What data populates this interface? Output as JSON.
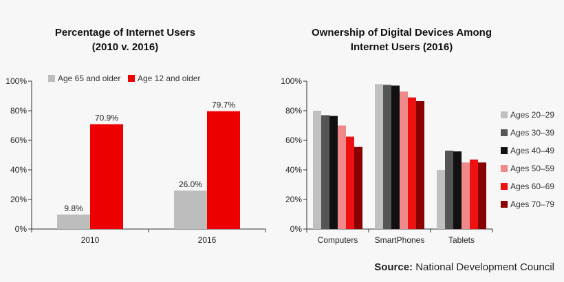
{
  "chart_data": [
    {
      "type": "bar",
      "title_lines": [
        "Percentage of Internet Users",
        "(2010 v. 2016)"
      ],
      "categories": [
        "2010",
        "2016"
      ],
      "series": [
        {
          "name": "Age 65 and older",
          "color": "#bdbdbd",
          "values": [
            9.8,
            26.0
          ],
          "labels": [
            "9.8%",
            "26.0%"
          ]
        },
        {
          "name": "Age 12 and older",
          "color": "#ee0000",
          "values": [
            70.9,
            79.7
          ],
          "labels": [
            "70.9%",
            "79.7%"
          ]
        }
      ],
      "yticks": [
        "0%",
        "20%",
        "40%",
        "60%",
        "80%",
        "100%"
      ],
      "ylim": [
        0,
        100
      ],
      "legend": "top"
    },
    {
      "type": "bar",
      "title_lines": [
        "Ownership of Digital Devices Among",
        "Internet Users (2016)"
      ],
      "categories": [
        "Computers",
        "SmartPhones",
        "Tablets"
      ],
      "series": [
        {
          "name": "Ages 20–29",
          "color": "#c0c0c0",
          "values": [
            80,
            98,
            40
          ]
        },
        {
          "name": "Ages 30–39",
          "color": "#555555",
          "values": [
            77,
            97.5,
            53
          ]
        },
        {
          "name": "Ages 40–49",
          "color": "#111111",
          "values": [
            76.5,
            97,
            52.5
          ]
        },
        {
          "name": "Ages 50–59",
          "color": "#f08a8a",
          "values": [
            70,
            93,
            45
          ]
        },
        {
          "name": "Ages 60–69",
          "color": "#ee1111",
          "values": [
            62.5,
            89,
            47
          ]
        },
        {
          "name": "Ages 70–79",
          "color": "#880000",
          "values": [
            55.5,
            86.5,
            45
          ]
        }
      ],
      "yticks": [
        "0%",
        "20%",
        "40%",
        "60%",
        "80%",
        "100%"
      ],
      "ylim": [
        0,
        100
      ],
      "legend": "right"
    }
  ],
  "source": {
    "label": "Source:",
    "text": " National Development Council"
  }
}
